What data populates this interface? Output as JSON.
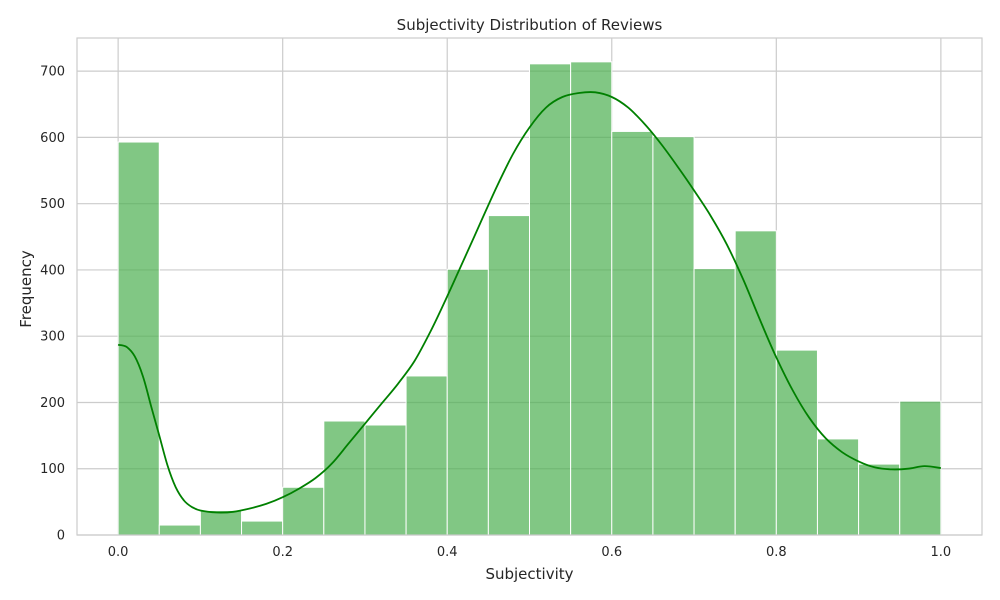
{
  "chart_data": {
    "type": "bar",
    "title": "Subjectivity Distribution of Reviews",
    "xlabel": "Subjectivity",
    "ylabel": "Frequency",
    "xlim": [
      -0.05,
      1.05
    ],
    "ylim": [
      0,
      750
    ],
    "xticks": [
      0.0,
      0.2,
      0.4,
      0.6,
      0.8,
      1.0
    ],
    "xtick_labels": [
      "0.0",
      "0.2",
      "0.4",
      "0.6",
      "0.8",
      "1.0"
    ],
    "yticks": [
      0,
      100,
      200,
      300,
      400,
      500,
      600,
      700
    ],
    "ytick_labels": [
      "0",
      "100",
      "200",
      "300",
      "400",
      "500",
      "600",
      "700"
    ],
    "grid": true,
    "bar_color": "#4caf50",
    "bins": [
      {
        "x0": 0.0,
        "x1": 0.05,
        "count": 593
      },
      {
        "x0": 0.05,
        "x1": 0.1,
        "count": 15
      },
      {
        "x0": 0.1,
        "x1": 0.15,
        "count": 37
      },
      {
        "x0": 0.15,
        "x1": 0.2,
        "count": 21
      },
      {
        "x0": 0.2,
        "x1": 0.25,
        "count": 72
      },
      {
        "x0": 0.25,
        "x1": 0.3,
        "count": 172
      },
      {
        "x0": 0.3,
        "x1": 0.35,
        "count": 166
      },
      {
        "x0": 0.35,
        "x1": 0.4,
        "count": 240
      },
      {
        "x0": 0.4,
        "x1": 0.45,
        "count": 401
      },
      {
        "x0": 0.45,
        "x1": 0.5,
        "count": 482
      },
      {
        "x0": 0.5,
        "x1": 0.55,
        "count": 711
      },
      {
        "x0": 0.55,
        "x1": 0.6,
        "count": 714
      },
      {
        "x0": 0.6,
        "x1": 0.65,
        "count": 609
      },
      {
        "x0": 0.65,
        "x1": 0.7,
        "count": 601
      },
      {
        "x0": 0.7,
        "x1": 0.75,
        "count": 402
      },
      {
        "x0": 0.75,
        "x1": 0.8,
        "count": 459
      },
      {
        "x0": 0.8,
        "x1": 0.85,
        "count": 279
      },
      {
        "x0": 0.85,
        "x1": 0.9,
        "count": 145
      },
      {
        "x0": 0.9,
        "x1": 0.95,
        "count": 107
      },
      {
        "x0": 0.95,
        "x1": 1.0,
        "count": 202
      }
    ],
    "kde": {
      "color": "#008000",
      "points": [
        [
          0.0,
          287
        ],
        [
          0.01,
          284
        ],
        [
          0.02,
          270
        ],
        [
          0.03,
          240
        ],
        [
          0.04,
          195
        ],
        [
          0.05,
          150
        ],
        [
          0.06,
          105
        ],
        [
          0.07,
          72
        ],
        [
          0.08,
          52
        ],
        [
          0.09,
          42
        ],
        [
          0.1,
          37
        ],
        [
          0.12,
          34
        ],
        [
          0.14,
          35
        ],
        [
          0.16,
          40
        ],
        [
          0.18,
          47
        ],
        [
          0.2,
          57
        ],
        [
          0.22,
          70
        ],
        [
          0.24,
          86
        ],
        [
          0.26,
          108
        ],
        [
          0.28,
          138
        ],
        [
          0.3,
          168
        ],
        [
          0.32,
          198
        ],
        [
          0.34,
          228
        ],
        [
          0.36,
          262
        ],
        [
          0.38,
          308
        ],
        [
          0.4,
          360
        ],
        [
          0.42,
          415
        ],
        [
          0.44,
          470
        ],
        [
          0.46,
          525
        ],
        [
          0.48,
          575
        ],
        [
          0.5,
          615
        ],
        [
          0.52,
          645
        ],
        [
          0.54,
          661
        ],
        [
          0.56,
          667
        ],
        [
          0.58,
          668
        ],
        [
          0.6,
          661
        ],
        [
          0.62,
          645
        ],
        [
          0.64,
          620
        ],
        [
          0.66,
          590
        ],
        [
          0.68,
          556
        ],
        [
          0.7,
          520
        ],
        [
          0.72,
          482
        ],
        [
          0.74,
          438
        ],
        [
          0.76,
          385
        ],
        [
          0.78,
          325
        ],
        [
          0.8,
          268
        ],
        [
          0.82,
          218
        ],
        [
          0.84,
          177
        ],
        [
          0.86,
          146
        ],
        [
          0.88,
          125
        ],
        [
          0.9,
          111
        ],
        [
          0.92,
          102
        ],
        [
          0.94,
          99
        ],
        [
          0.96,
          100
        ],
        [
          0.98,
          104
        ],
        [
          1.0,
          101
        ]
      ]
    }
  }
}
